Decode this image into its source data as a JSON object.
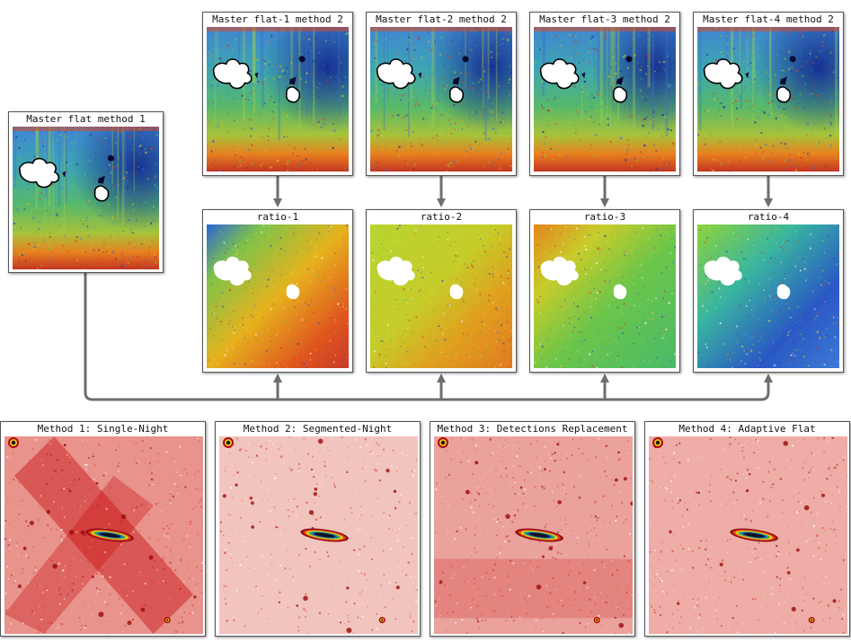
{
  "method1_flat": {
    "title": "Master flat method 1"
  },
  "method2_flats": [
    {
      "title": "Master flat-1 method 2"
    },
    {
      "title": "Master flat-2 method 2"
    },
    {
      "title": "Master flat-3 method 2"
    },
    {
      "title": "Master flat-4 method 2"
    }
  ],
  "ratios": [
    {
      "title": "ratio-1"
    },
    {
      "title": "ratio-2"
    },
    {
      "title": "ratio-3"
    },
    {
      "title": "ratio-4"
    }
  ],
  "results": [
    {
      "title": "Method 1: Single-Night"
    },
    {
      "title": "Method 2: Segmented-Night"
    },
    {
      "title": "Method 3: Detections Replacement"
    },
    {
      "title": "Method 4: Adaptive Flat"
    }
  ],
  "colors": {
    "connector": "#6e6e6e",
    "mask": "#ffffff",
    "panel_border": "#555555"
  }
}
